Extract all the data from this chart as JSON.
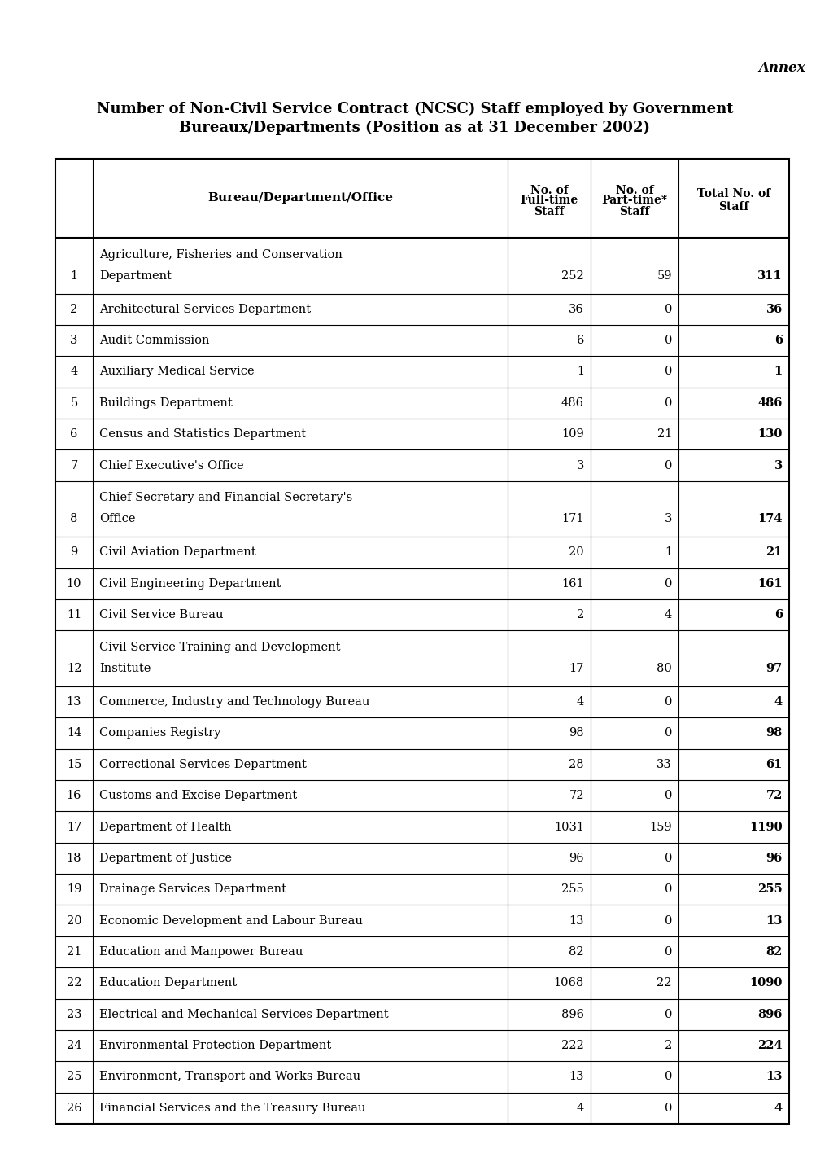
{
  "annex_text": "Annex",
  "title_line1": "Number of Non-Civil Service Contract (NCSC) Staff employed by Government",
  "title_line2": "Bureaux/Departments (Position as at 31 December 2002)",
  "col_headers_line1": [
    "Bureau/Department/Office",
    "No. of",
    "No. of",
    "Total No. of"
  ],
  "col_headers_line2": [
    "",
    "Full-time",
    "Part-time*",
    "Staff"
  ],
  "col_headers_line3": [
    "",
    "Staff",
    "Staff",
    ""
  ],
  "rows": [
    {
      "num": "",
      "name_line1": "Agriculture, Fisheries and Conservation",
      "name_line2": "Department",
      "full": "252",
      "part": "59",
      "total": "311",
      "two_line": true
    },
    {
      "num": "2",
      "name_line1": "Architectural Services Department",
      "name_line2": "",
      "full": "36",
      "part": "0",
      "total": "36",
      "two_line": false
    },
    {
      "num": "3",
      "name_line1": "Audit Commission",
      "name_line2": "",
      "full": "6",
      "part": "0",
      "total": "6",
      "two_line": false
    },
    {
      "num": "4",
      "name_line1": "Auxiliary Medical Service",
      "name_line2": "",
      "full": "1",
      "part": "0",
      "total": "1",
      "two_line": false
    },
    {
      "num": "5",
      "name_line1": "Buildings Department",
      "name_line2": "",
      "full": "486",
      "part": "0",
      "total": "486",
      "two_line": false
    },
    {
      "num": "6",
      "name_line1": "Census and Statistics Department",
      "name_line2": "",
      "full": "109",
      "part": "21",
      "total": "130",
      "two_line": false
    },
    {
      "num": "7",
      "name_line1": "Chief Executive's Office",
      "name_line2": "",
      "full": "3",
      "part": "0",
      "total": "3",
      "two_line": false
    },
    {
      "num": "",
      "name_line1": "Chief Secretary and Financial Secretary's",
      "name_line2": "Office",
      "full": "171",
      "part": "3",
      "total": "174",
      "two_line": true
    },
    {
      "num": "9",
      "name_line1": "Civil Aviation Department",
      "name_line2": "",
      "full": "20",
      "part": "1",
      "total": "21",
      "two_line": false
    },
    {
      "num": "10",
      "name_line1": "Civil Engineering Department",
      "name_line2": "",
      "full": "161",
      "part": "0",
      "total": "161",
      "two_line": false
    },
    {
      "num": "11",
      "name_line1": "Civil Service Bureau",
      "name_line2": "",
      "full": "2",
      "part": "4",
      "total": "6",
      "two_line": false
    },
    {
      "num": "",
      "name_line1": "Civil Service Training and Development",
      "name_line2": "Institute",
      "full": "17",
      "part": "80",
      "total": "97",
      "two_line": true
    },
    {
      "num": "13",
      "name_line1": "Commerce, Industry and Technology Bureau",
      "name_line2": "",
      "full": "4",
      "part": "0",
      "total": "4",
      "two_line": false
    },
    {
      "num": "14",
      "name_line1": "Companies Registry",
      "name_line2": "",
      "full": "98",
      "part": "0",
      "total": "98",
      "two_line": false
    },
    {
      "num": "15",
      "name_line1": "Correctional Services Department",
      "name_line2": "",
      "full": "28",
      "part": "33",
      "total": "61",
      "two_line": false
    },
    {
      "num": "16",
      "name_line1": "Customs and Excise Department",
      "name_line2": "",
      "full": "72",
      "part": "0",
      "total": "72",
      "two_line": false
    },
    {
      "num": "17",
      "name_line1": "Department of Health",
      "name_line2": "",
      "full": "1031",
      "part": "159",
      "total": "1190",
      "two_line": false
    },
    {
      "num": "18",
      "name_line1": "Department of Justice",
      "name_line2": "",
      "full": "96",
      "part": "0",
      "total": "96",
      "two_line": false
    },
    {
      "num": "19",
      "name_line1": "Drainage Services Department",
      "name_line2": "",
      "full": "255",
      "part": "0",
      "total": "255",
      "two_line": false
    },
    {
      "num": "20",
      "name_line1": "Economic Development and Labour Bureau",
      "name_line2": "",
      "full": "13",
      "part": "0",
      "total": "13",
      "two_line": false
    },
    {
      "num": "21",
      "name_line1": "Education and Manpower Bureau",
      "name_line2": "",
      "full": "82",
      "part": "0",
      "total": "82",
      "two_line": false
    },
    {
      "num": "22",
      "name_line1": "Education Department",
      "name_line2": "",
      "full": "1068",
      "part": "22",
      "total": "1090",
      "two_line": false
    },
    {
      "num": "23",
      "name_line1": "Electrical and Mechanical Services Department",
      "name_line2": "",
      "full": "896",
      "part": "0",
      "total": "896",
      "two_line": false
    },
    {
      "num": "24",
      "name_line1": "Environmental Protection Department",
      "name_line2": "",
      "full": "222",
      "part": "2",
      "total": "224",
      "two_line": false
    },
    {
      "num": "25",
      "name_line1": "Environment, Transport and Works Bureau",
      "name_line2": "",
      "full": "13",
      "part": "0",
      "total": "13",
      "two_line": false
    },
    {
      "num": "26",
      "name_line1": "Financial Services and the Treasury Bureau",
      "name_line2": "",
      "full": "4",
      "part": "0",
      "total": "4",
      "two_line": false
    }
  ],
  "two_line_nums": {
    "0": "1",
    "7": "8",
    "11": "12"
  },
  "bg": "#ffffff",
  "fg": "#000000"
}
